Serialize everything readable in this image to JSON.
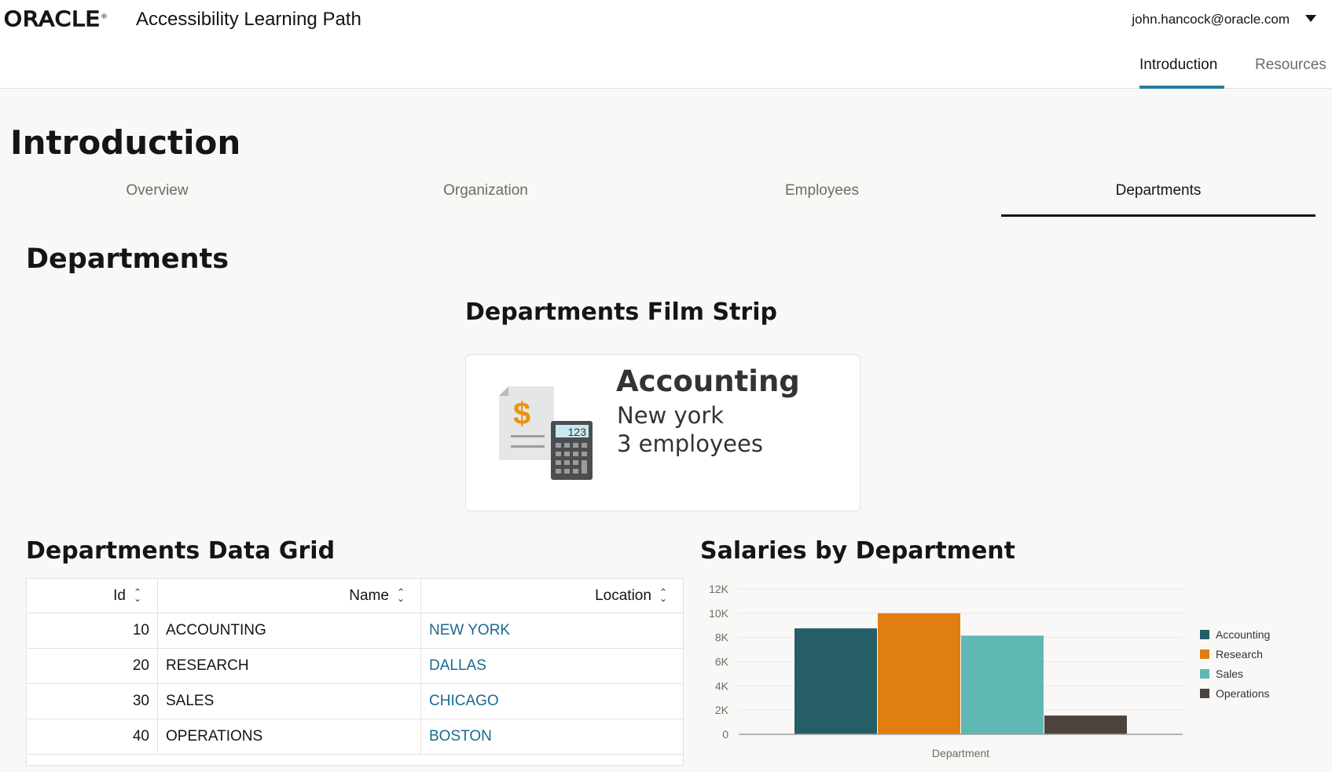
{
  "header": {
    "logo": "ORACLE",
    "app_title": "Accessibility Learning Path",
    "user": "john.hancock@oracle.com",
    "nav": [
      {
        "label": "Introduction",
        "active": true
      },
      {
        "label": "Resources",
        "active": false
      }
    ]
  },
  "page_title": "Introduction",
  "sub_tabs": [
    {
      "label": "Overview"
    },
    {
      "label": "Organization"
    },
    {
      "label": "Employees"
    },
    {
      "label": "Departments",
      "active": true
    }
  ],
  "section_title": "Departments",
  "film_strip": {
    "title": "Departments Film Strip",
    "card": {
      "name": "Accounting",
      "location": "New york",
      "employees": "3 employees",
      "icon": "accounting-calculator-icon"
    }
  },
  "grid": {
    "title": "Departments Data Grid",
    "columns": [
      "Id",
      "Name",
      "Location"
    ],
    "rows": [
      [
        "10",
        "ACCOUNTING",
        "NEW YORK"
      ],
      [
        "20",
        "RESEARCH",
        "DALLAS"
      ],
      [
        "30",
        "SALES",
        "CHICAGO"
      ],
      [
        "40",
        "OPERATIONS",
        "BOSTON"
      ]
    ]
  },
  "chart_title": "Salaries by Department",
  "chart_data": {
    "type": "bar",
    "xlabel": "Department",
    "categories": [
      "Department"
    ],
    "ylim": [
      0,
      12000
    ],
    "yticks": [
      "0",
      "2K",
      "4K",
      "6K",
      "8K",
      "10K",
      "12K"
    ],
    "grid": true,
    "legend": "right",
    "series": [
      {
        "name": "Accounting",
        "values": [
          8750
        ],
        "color": "#255e67"
      },
      {
        "name": "Research",
        "values": [
          10000
        ],
        "color": "#e07f10"
      },
      {
        "name": "Sales",
        "values": [
          8150
        ],
        "color": "#5fb8b4"
      },
      {
        "name": "Operations",
        "values": [
          1550
        ],
        "color": "#4e433a"
      }
    ]
  }
}
